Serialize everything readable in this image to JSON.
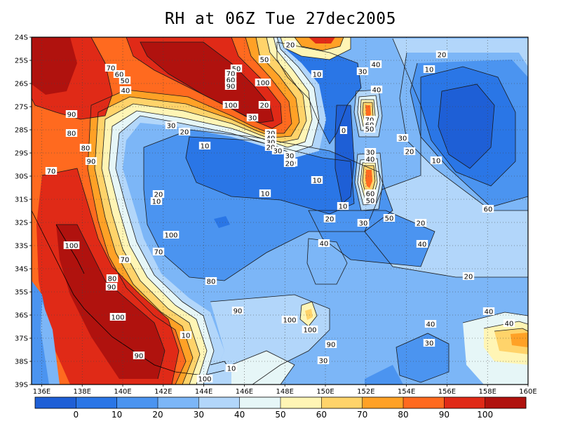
{
  "title": "RH at 06Z Tue 27dec2005",
  "map": {
    "lat_labels": [
      "24S",
      "25S",
      "26S",
      "27S",
      "28S",
      "29S",
      "30S",
      "31S",
      "32S",
      "33S",
      "34S",
      "35S",
      "36S",
      "37S",
      "38S",
      "39S"
    ],
    "lon_labels": [
      "136E",
      "138E",
      "140E",
      "142E",
      "144E",
      "146E",
      "148E",
      "150E",
      "152E",
      "154E",
      "156E",
      "158E",
      "160E"
    ],
    "contour_labels": [
      "70",
      "60",
      "50",
      "40",
      "90",
      "80",
      "80",
      "90",
      "70",
      "100",
      "70",
      "80",
      "90",
      "100",
      "50",
      "70",
      "60",
      "90",
      "100",
      "100",
      "50",
      "20",
      "30",
      "40",
      "10",
      "40",
      "70",
      "60",
      "50",
      "0",
      "30",
      "20",
      "10",
      "30",
      "20",
      "10",
      "10",
      "10",
      "30",
      "40",
      "60",
      "50",
      "20",
      "10",
      "20",
      "10",
      "10",
      "20",
      "30",
      "20",
      "30",
      "30",
      "40",
      "40",
      "100",
      "70",
      "80",
      "90",
      "100",
      "100",
      "90",
      "30",
      "40",
      "30",
      "20",
      "40",
      "40",
      "50",
      "60",
      "30",
      "20",
      "40",
      "30",
      "20",
      "30",
      "20",
      "10",
      "90",
      "100",
      "10",
      "20",
      "20",
      "30",
      "40",
      "20"
    ]
  },
  "colorbar": {
    "labels": [
      "0",
      "10",
      "20",
      "30",
      "40",
      "50",
      "60",
      "70",
      "80",
      "90",
      "100"
    ],
    "colors": [
      "#1e5fd6",
      "#2a76e6",
      "#4b94f0",
      "#7cb6f7",
      "#b2d6fa",
      "#e6f6f7",
      "#fff5b5",
      "#ffd36a",
      "#ffa126",
      "#ff6a1f",
      "#e02a17",
      "#b0120e"
    ]
  },
  "colors": {
    "frame": "#000000",
    "grid": "#444444",
    "contour": "#1a1a1a"
  }
}
